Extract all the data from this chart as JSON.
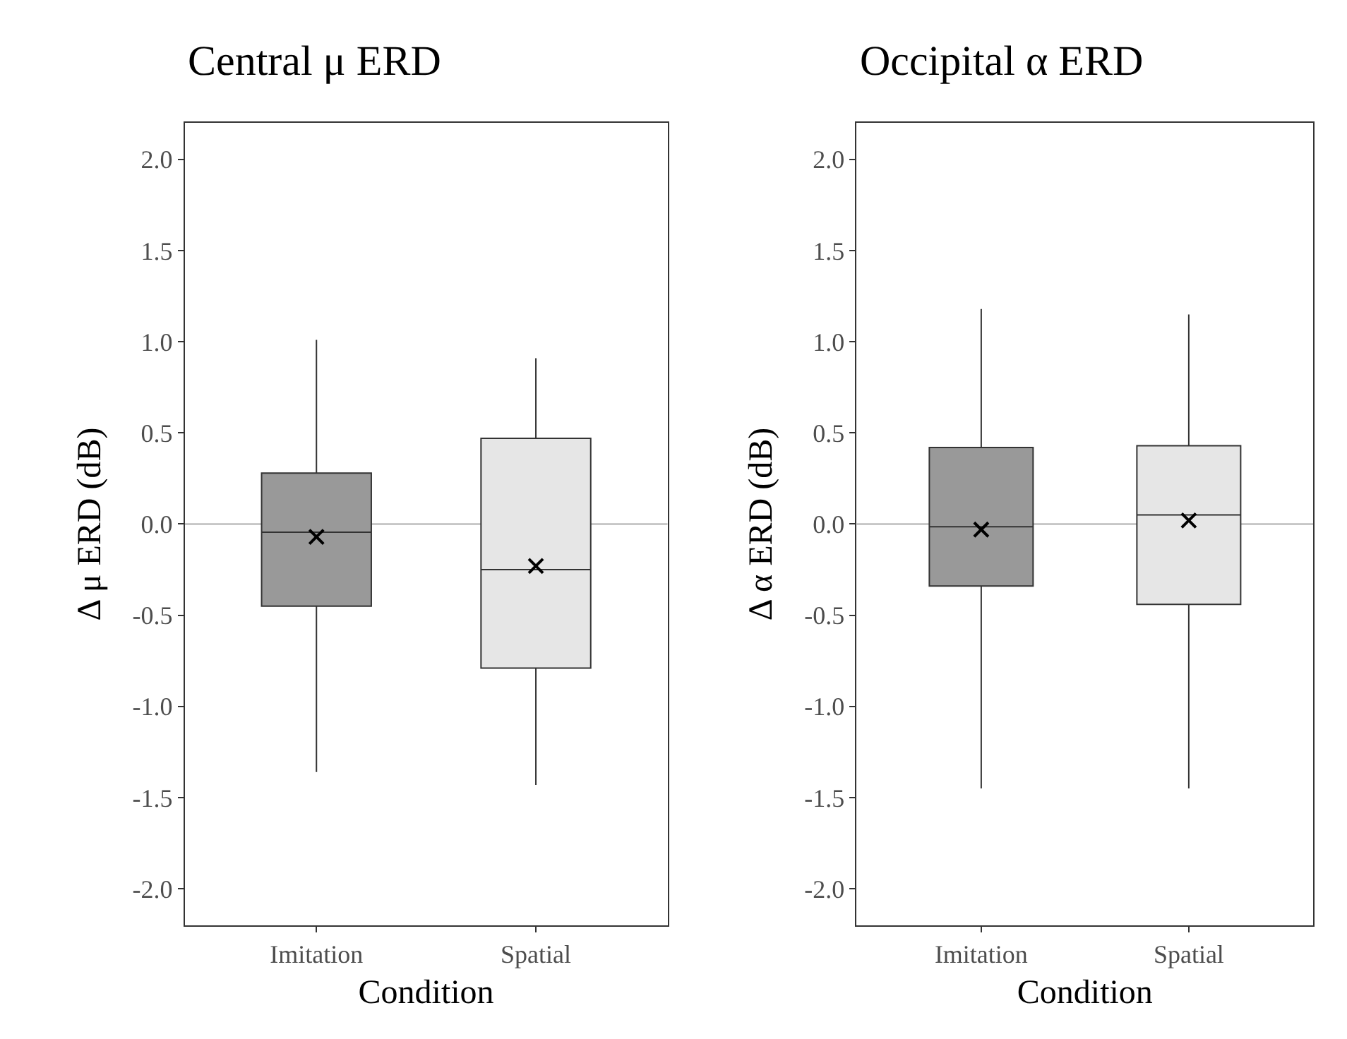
{
  "chart_data": [
    {
      "type": "box",
      "title": "Central μ ERD",
      "xlabel": "Condition",
      "ylabel": "Δ μ ERD (dB)",
      "categories": [
        "Imitation",
        "Spatial"
      ],
      "colors": [
        "#999999",
        "#e6e6e6"
      ],
      "boxes": [
        {
          "low": -1.36,
          "q1": -0.45,
          "median": -0.045,
          "q3": 0.28,
          "high": 1.01,
          "mean": -0.07
        },
        {
          "low": -1.43,
          "q1": -0.79,
          "median": -0.25,
          "q3": 0.47,
          "high": 0.91,
          "mean": -0.23
        }
      ],
      "ylim": [
        -2.2,
        2.2
      ],
      "yticks": [
        {
          "value": -2,
          "label": "-2.0"
        },
        {
          "value": -1.5,
          "label": "-1.5"
        },
        {
          "value": -1,
          "label": "-1.0"
        },
        {
          "value": -0.5,
          "label": "-0.5"
        },
        {
          "value": 0,
          "label": "0.0"
        },
        {
          "value": 0.5,
          "label": "0.5"
        },
        {
          "value": 1,
          "label": "1.0"
        },
        {
          "value": 1.5,
          "label": "1.5"
        },
        {
          "value": 2,
          "label": "2.0"
        }
      ],
      "ref_lines": [
        {
          "axis": "y",
          "value": 0,
          "color": "#bebebe"
        }
      ],
      "marker": "cross",
      "grid": false
    },
    {
      "type": "box",
      "title": "Occipital α ERD",
      "xlabel": "Condition",
      "ylabel": "Δ α ERD (dB)",
      "categories": [
        "Imitation",
        "Spatial"
      ],
      "colors": [
        "#999999",
        "#e6e6e6"
      ],
      "boxes": [
        {
          "low": -1.45,
          "q1": -0.34,
          "median": -0.015,
          "q3": 0.42,
          "high": 1.18,
          "mean": -0.03
        },
        {
          "low": -1.45,
          "q1": -0.44,
          "median": 0.05,
          "q3": 0.43,
          "high": 1.15,
          "mean": 0.02
        }
      ],
      "ylim": [
        -2.2,
        2.2
      ],
      "yticks": [
        {
          "value": -2,
          "label": "-2.0"
        },
        {
          "value": -1.5,
          "label": "-1.5"
        },
        {
          "value": -1,
          "label": "-1.0"
        },
        {
          "value": -0.5,
          "label": "-0.5"
        },
        {
          "value": 0,
          "label": "0.0"
        },
        {
          "value": 0.5,
          "label": "0.5"
        },
        {
          "value": 1,
          "label": "1.0"
        },
        {
          "value": 1.5,
          "label": "1.5"
        },
        {
          "value": 2,
          "label": "2.0"
        }
      ],
      "ref_lines": [
        {
          "axis": "y",
          "value": 0,
          "color": "#bebebe"
        }
      ],
      "marker": "cross",
      "grid": false
    }
  ]
}
